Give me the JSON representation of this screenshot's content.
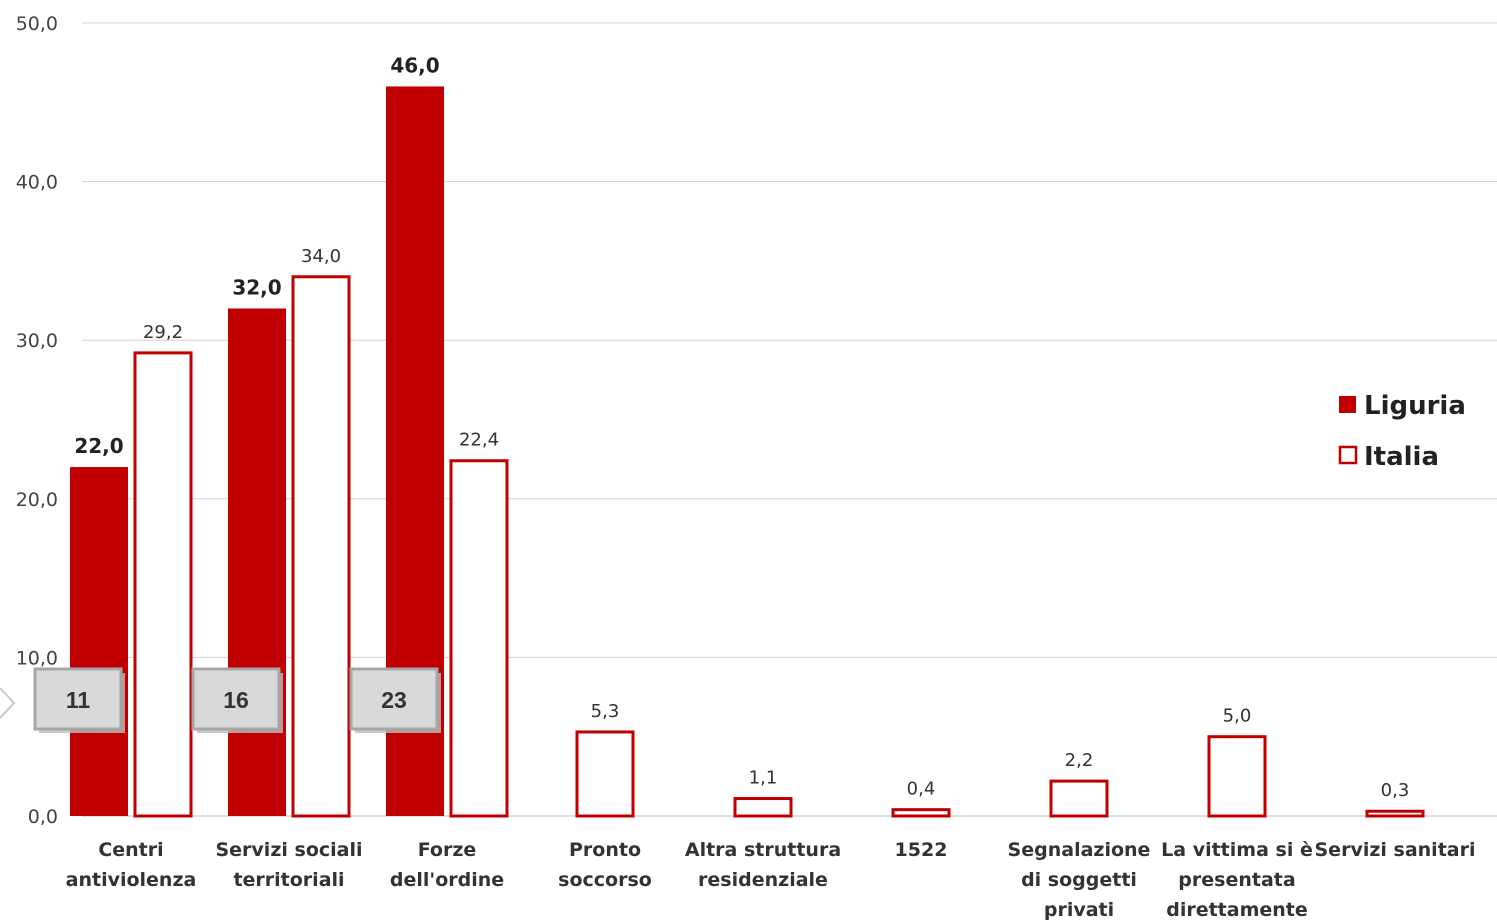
{
  "chart_data": {
    "type": "bar",
    "categories": [
      [
        "Centri",
        "antiviolenza"
      ],
      [
        "Servizi sociali",
        "territoriali"
      ],
      [
        "Forze",
        "dell'ordine"
      ],
      [
        "Pronto",
        "soccorso"
      ],
      [
        "Altra struttura",
        "residenziale"
      ],
      [
        "1522"
      ],
      [
        "Segnalazione",
        "di soggetti",
        "privati"
      ],
      [
        "La vittima si è",
        "presentata",
        "direttamente"
      ],
      [
        "Servizi sanitari"
      ]
    ],
    "series": [
      {
        "name": "Liguria",
        "values": [
          22.0,
          32.0,
          46.0,
          null,
          null,
          null,
          null,
          null,
          null
        ],
        "labels": [
          "22,0",
          "32,0",
          "46,0",
          null,
          null,
          null,
          null,
          null,
          null
        ],
        "color": "#c00000",
        "style": "filled"
      },
      {
        "name": "Italia",
        "values": [
          29.2,
          34.0,
          22.4,
          5.3,
          1.1,
          0.4,
          2.2,
          5.0,
          0.3
        ],
        "labels": [
          "29,2",
          "34,0",
          "22,4",
          "5,3",
          "1,1",
          "0,4",
          "2,2",
          "5,0",
          "0,3"
        ],
        "color": "#c00000",
        "style": "outline"
      }
    ],
    "counts": [
      {
        "category_index": 0,
        "label": "11"
      },
      {
        "category_index": 1,
        "label": "16"
      },
      {
        "category_index": 2,
        "label": "23"
      }
    ],
    "ylim": [
      0,
      50
    ],
    "yticks": [
      0,
      10,
      20,
      30,
      40,
      50
    ],
    "ytick_labels": [
      "0,0",
      "10,0",
      "20,0",
      "30,0",
      "40,0",
      "50,0"
    ],
    "grid": true,
    "legend_position": "right",
    "title": "",
    "xlabel": "",
    "ylabel": ""
  }
}
